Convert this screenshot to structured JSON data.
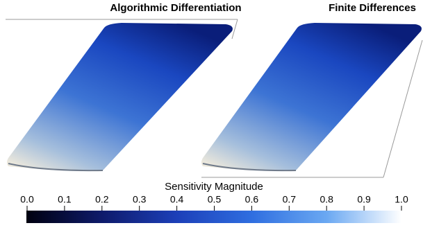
{
  "panels": [
    {
      "title": "Algorithmic Differentiation"
    },
    {
      "title": "Finite Differences"
    }
  ],
  "colorbar": {
    "label": "Sensitivity Magnitude",
    "lim": [
      0,
      1
    ],
    "ticks": [
      {
        "value": 0,
        "label": "0.0"
      },
      {
        "value": 0.1,
        "label": "0.1"
      },
      {
        "value": 0.2,
        "label": "0.2"
      },
      {
        "value": 0.3,
        "label": "0.3"
      },
      {
        "value": 0.4,
        "label": "0.4"
      },
      {
        "value": 0.5,
        "label": "0.5"
      },
      {
        "value": 0.6,
        "label": "0.6"
      },
      {
        "value": 0.7,
        "label": "0.7"
      },
      {
        "value": 0.8,
        "label": "0.8"
      },
      {
        "value": 0.9,
        "label": "0.9"
      },
      {
        "value": 1,
        "label": "1.0"
      }
    ],
    "colors": [
      "#00000f",
      "#0e1a6a",
      "#1c3fb8",
      "#2f6ee0",
      "#6aa8f2",
      "#ffffff"
    ]
  }
}
